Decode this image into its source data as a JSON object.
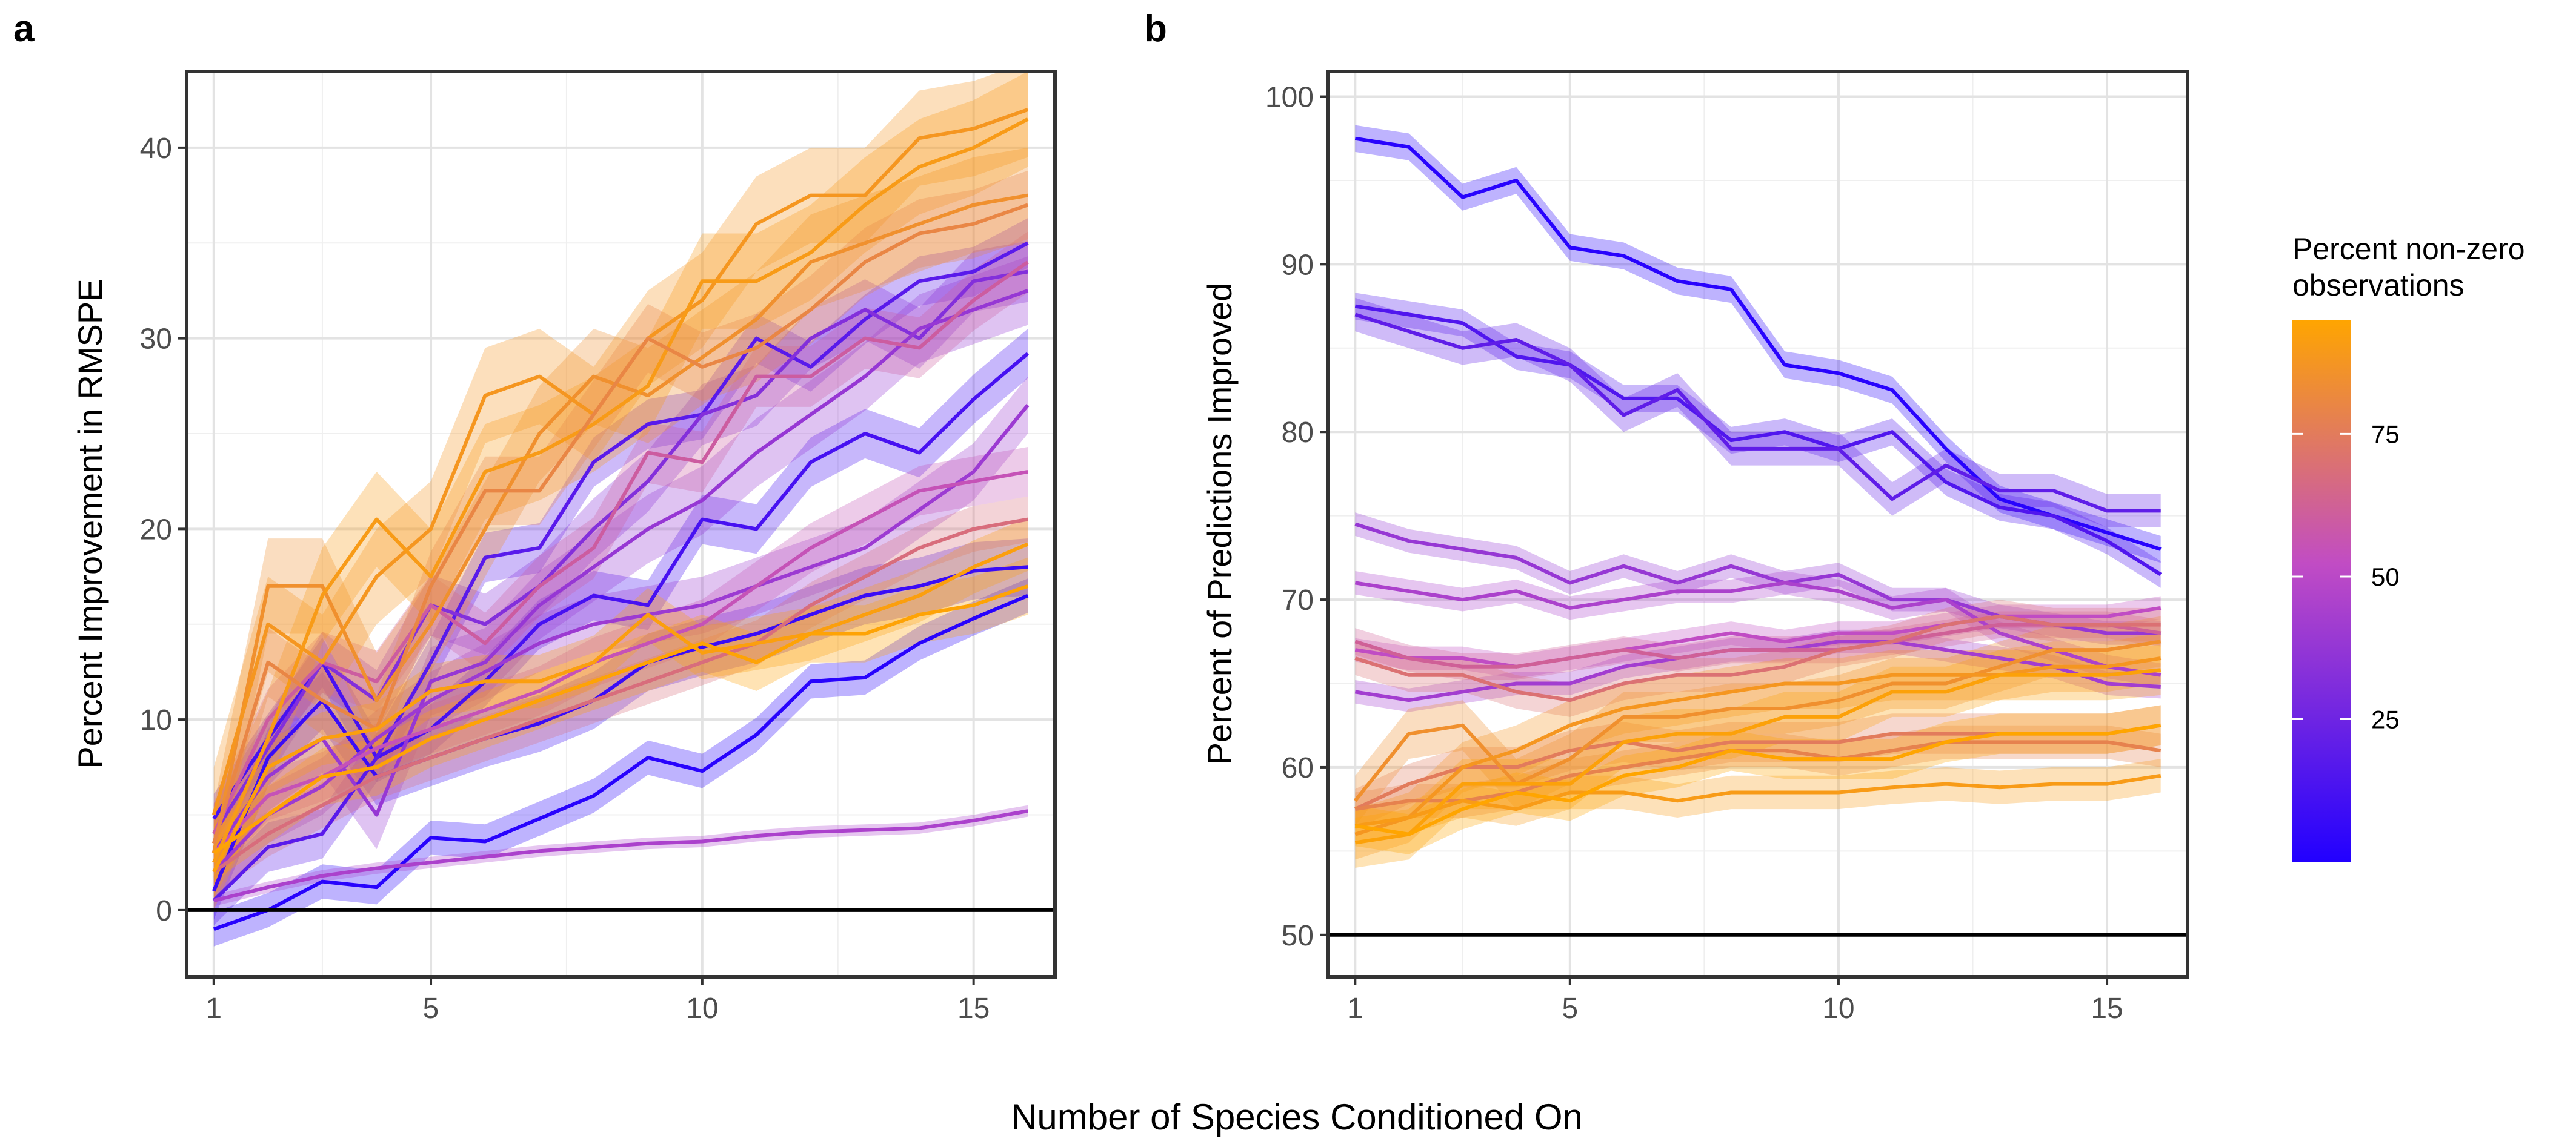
{
  "figure": {
    "shared_xlabel": "Number of Species Conditioned On",
    "legend": {
      "title_line1": "Percent non-zero",
      "title_line2": "observations",
      "ticks": [
        "25",
        "50",
        "75"
      ],
      "tick_values": [
        25,
        50,
        75
      ],
      "range": [
        0,
        95
      ],
      "color_low": "#2200ff",
      "color_high": "#ffa500"
    }
  },
  "chart_data": [
    {
      "panel_label": "a",
      "type": "line",
      "title": "",
      "xlabel": "",
      "ylabel": "Percent Improvement in RMSPE",
      "xlim": [
        0.5,
        16.5
      ],
      "ylim": [
        -3.5,
        44
      ],
      "xticks": [
        1,
        5,
        10,
        15
      ],
      "xtick_labels": [
        "1",
        "5",
        "10",
        "15"
      ],
      "yticks": [
        0,
        10,
        20,
        30,
        40
      ],
      "ytick_labels": [
        "0",
        "10",
        "20",
        "30",
        "40"
      ],
      "reference_line": 0,
      "grid": true,
      "x": [
        1,
        2,
        3,
        4,
        5,
        6,
        7,
        8,
        9,
        10,
        11,
        12,
        13,
        14,
        15,
        16
      ],
      "series": [
        {
          "pct_nonzero": 2,
          "band": 0.9,
          "values": [
            -1,
            0,
            1.5,
            1.2,
            3.8,
            3.6,
            4.8,
            6,
            8,
            7.3,
            9.2,
            12,
            12.2,
            14,
            15.3,
            16.5
          ]
        },
        {
          "pct_nonzero": 12,
          "band": 1.3,
          "values": [
            4.8,
            9,
            13,
            8,
            9.5,
            12,
            15,
            16.5,
            16,
            20.5,
            20,
            23.5,
            25,
            24,
            26.8,
            29.2
          ]
        },
        {
          "pct_nonzero": 8,
          "band": 1.5,
          "values": [
            1,
            8,
            11,
            7,
            8,
            9,
            9.8,
            11,
            13,
            13.8,
            14.5,
            15.5,
            16.5,
            17,
            17.8,
            18
          ]
        },
        {
          "pct_nonzero": 18,
          "band": 1.3,
          "values": [
            0.5,
            3.3,
            4,
            8,
            13,
            18.5,
            19,
            23.5,
            25.5,
            26,
            30,
            28.5,
            31,
            33,
            33.5,
            35
          ]
        },
        {
          "pct_nonzero": 32,
          "band": 1.6,
          "values": [
            4,
            8.5,
            13,
            11,
            16,
            15,
            17,
            20,
            22.5,
            26,
            27,
            30,
            31.5,
            30,
            33,
            33.5
          ]
        },
        {
          "pct_nonzero": 45,
          "band": 0.3,
          "values": [
            0.5,
            1.2,
            1.8,
            2.2,
            2.5,
            2.8,
            3.1,
            3.3,
            3.5,
            3.6,
            3.9,
            4.1,
            4.2,
            4.3,
            4.7,
            5.2
          ]
        },
        {
          "pct_nonzero": 38,
          "band": 1.8,
          "values": [
            3,
            7,
            9,
            5,
            12,
            13,
            16,
            18,
            20,
            21.5,
            24,
            26,
            28,
            30.5,
            31.5,
            32.5
          ]
        },
        {
          "pct_nonzero": 40,
          "band": 1.5,
          "values": [
            2,
            5,
            6.5,
            9,
            11,
            12.5,
            14,
            15,
            15.5,
            16,
            17,
            18,
            19,
            21,
            23,
            26.5
          ]
        },
        {
          "pct_nonzero": 55,
          "band": 1.3,
          "values": [
            3,
            6,
            7,
            8.5,
            9.5,
            10.5,
            11.5,
            13,
            14,
            15,
            17,
            19,
            20.5,
            22,
            22.5,
            23
          ]
        },
        {
          "pct_nonzero": 60,
          "band": 1.6,
          "values": [
            4,
            10,
            13,
            12,
            16,
            14,
            17,
            19,
            24,
            23.5,
            28,
            28,
            30,
            29.5,
            32,
            34
          ]
        },
        {
          "pct_nonzero": 68,
          "band": 1.2,
          "values": [
            2,
            4,
            5.5,
            7,
            8,
            9,
            10,
            11,
            12,
            13,
            14,
            16,
            17.5,
            19,
            20,
            20.5
          ]
        },
        {
          "pct_nonzero": 85,
          "band": 2.5,
          "values": [
            3,
            17,
            17,
            11,
            15,
            20,
            25,
            28,
            27,
            29,
            31,
            34,
            35,
            36,
            37,
            37.5
          ]
        },
        {
          "pct_nonzero": 88,
          "band": 2.5,
          "values": [
            5,
            15,
            13,
            17.5,
            20,
            27,
            28,
            26,
            30,
            32,
            36,
            37.5,
            37.5,
            40.5,
            41,
            42
          ]
        },
        {
          "pct_nonzero": 90,
          "band": 2.5,
          "values": [
            2.5,
            9,
            16.5,
            20.5,
            17.5,
            23,
            24,
            25.5,
            27.5,
            33,
            33,
            34.5,
            37,
            39,
            40,
            41.5
          ]
        },
        {
          "pct_nonzero": 80,
          "band": 1.8,
          "values": [
            3.5,
            13,
            11,
            9.5,
            17,
            22,
            22,
            26,
            30,
            28.5,
            29.5,
            31.5,
            34,
            35.5,
            36,
            37
          ]
        },
        {
          "pct_nonzero": 92,
          "band": 1.4,
          "values": [
            2,
            7.5,
            9,
            9.5,
            11.5,
            12,
            12,
            13,
            15.5,
            13.5,
            14,
            14.5,
            15.5,
            16.5,
            18,
            19.2
          ]
        },
        {
          "pct_nonzero": 94,
          "band": 1.5,
          "values": [
            3,
            5,
            7,
            7.5,
            9,
            10,
            11,
            12,
            13,
            14,
            13,
            14.5,
            14.5,
            15.5,
            16,
            17
          ]
        }
      ]
    },
    {
      "panel_label": "b",
      "type": "line",
      "title": "",
      "xlabel": "",
      "ylabel": "Percent of Predictions Improved",
      "xlim": [
        0.5,
        16.5
      ],
      "ylim": [
        47.5,
        101.5
      ],
      "xticks": [
        1,
        5,
        10,
        15
      ],
      "xtick_labels": [
        "1",
        "5",
        "10",
        "15"
      ],
      "yticks": [
        50,
        60,
        70,
        80,
        90,
        100
      ],
      "ytick_labels": [
        "50",
        "60",
        "70",
        "80",
        "90",
        "100"
      ],
      "reference_line": 50,
      "grid": true,
      "x": [
        1,
        2,
        3,
        4,
        5,
        6,
        7,
        8,
        9,
        10,
        11,
        12,
        13,
        14,
        15,
        16
      ],
      "series": [
        {
          "pct_nonzero": 2,
          "band": 0.8,
          "values": [
            97.5,
            97,
            94,
            95,
            91,
            90.5,
            89,
            88.5,
            84,
            83.5,
            82.5,
            79,
            76,
            75,
            74,
            73
          ]
        },
        {
          "pct_nonzero": 15,
          "band": 0.8,
          "values": [
            87.5,
            87,
            86.5,
            84.5,
            84,
            82,
            82,
            79.5,
            80,
            79,
            80,
            77,
            75.5,
            75,
            73.5,
            71.5
          ]
        },
        {
          "pct_nonzero": 20,
          "band": 1.0,
          "values": [
            87,
            86,
            85,
            85.5,
            84,
            81,
            82.5,
            79,
            79,
            79,
            76,
            78,
            76.5,
            76.5,
            75.3,
            75.3
          ]
        },
        {
          "pct_nonzero": 38,
          "band": 0.7,
          "values": [
            74.5,
            73.5,
            73,
            72.5,
            71,
            72,
            71,
            72,
            71,
            71.5,
            70,
            70,
            69,
            68.5,
            68,
            68
          ]
        },
        {
          "pct_nonzero": 45,
          "band": 0.7,
          "values": [
            71,
            70.5,
            70,
            70.5,
            69.5,
            70,
            70.5,
            70.5,
            71,
            70.5,
            69.5,
            70,
            68,
            67,
            66,
            65.5
          ]
        },
        {
          "pct_nonzero": 52,
          "band": 0.7,
          "values": [
            67,
            66.5,
            66.5,
            66,
            66.5,
            67,
            67.5,
            68,
            67.5,
            68,
            68,
            68.5,
            69,
            69,
            69,
            69.5
          ]
        },
        {
          "pct_nonzero": 42,
          "band": 0.7,
          "values": [
            64.5,
            64,
            64.5,
            65,
            65,
            66,
            66.5,
            67,
            67,
            67.5,
            67.5,
            67,
            66.5,
            66,
            65,
            64.8
          ]
        },
        {
          "pct_nonzero": 62,
          "band": 0.8,
          "values": [
            67.5,
            66.5,
            66,
            66,
            66.5,
            67,
            66.5,
            67,
            67,
            67,
            67.5,
            68,
            68.5,
            68.5,
            68.5,
            68
          ]
        },
        {
          "pct_nonzero": 70,
          "band": 1.0,
          "values": [
            66.5,
            65.5,
            65.5,
            64.5,
            64,
            65,
            65.5,
            65.5,
            66,
            67,
            67.5,
            68.5,
            69,
            68.5,
            68.5,
            68.5
          ]
        },
        {
          "pct_nonzero": 75,
          "band": 1.2,
          "values": [
            57.5,
            59,
            60,
            60,
            61,
            61.5,
            61,
            61.5,
            61.5,
            61.5,
            62,
            62,
            62,
            62,
            62,
            62.5
          ]
        },
        {
          "pct_nonzero": 78,
          "band": 1.0,
          "values": [
            57.5,
            58,
            58,
            58.5,
            59.5,
            60,
            60.5,
            61,
            61,
            60.5,
            61,
            61.5,
            61.5,
            61.5,
            61.5,
            61
          ]
        },
        {
          "pct_nonzero": 85,
          "band": 1.5,
          "values": [
            58,
            62,
            62.5,
            59,
            60.5,
            63,
            63,
            63.5,
            63.5,
            64,
            65,
            65,
            66,
            67,
            67,
            67.5
          ]
        },
        {
          "pct_nonzero": 88,
          "band": 1.5,
          "values": [
            56,
            57,
            60,
            61,
            62.5,
            63.5,
            64,
            64.5,
            65,
            65,
            65.5,
            65.5,
            65.5,
            66,
            66,
            66.5
          ]
        },
        {
          "pct_nonzero": 90,
          "band": 1.0,
          "values": [
            56.5,
            57,
            58,
            57.5,
            58.5,
            58.5,
            58,
            58.5,
            58.5,
            58.5,
            58.8,
            59,
            58.8,
            59,
            59,
            59.5
          ]
        },
        {
          "pct_nonzero": 93,
          "band": 1.5,
          "values": [
            55.5,
            56,
            59,
            59,
            59,
            61.5,
            62,
            62,
            63,
            63,
            64.5,
            64.5,
            65.5,
            65.5,
            65.5,
            65.8
          ]
        },
        {
          "pct_nonzero": 95,
          "band": 1.2,
          "values": [
            56.5,
            56,
            57.5,
            58.5,
            58,
            59.5,
            60,
            61,
            60.5,
            60.5,
            60.5,
            61.5,
            62,
            62,
            62,
            62.5
          ]
        }
      ]
    }
  ]
}
